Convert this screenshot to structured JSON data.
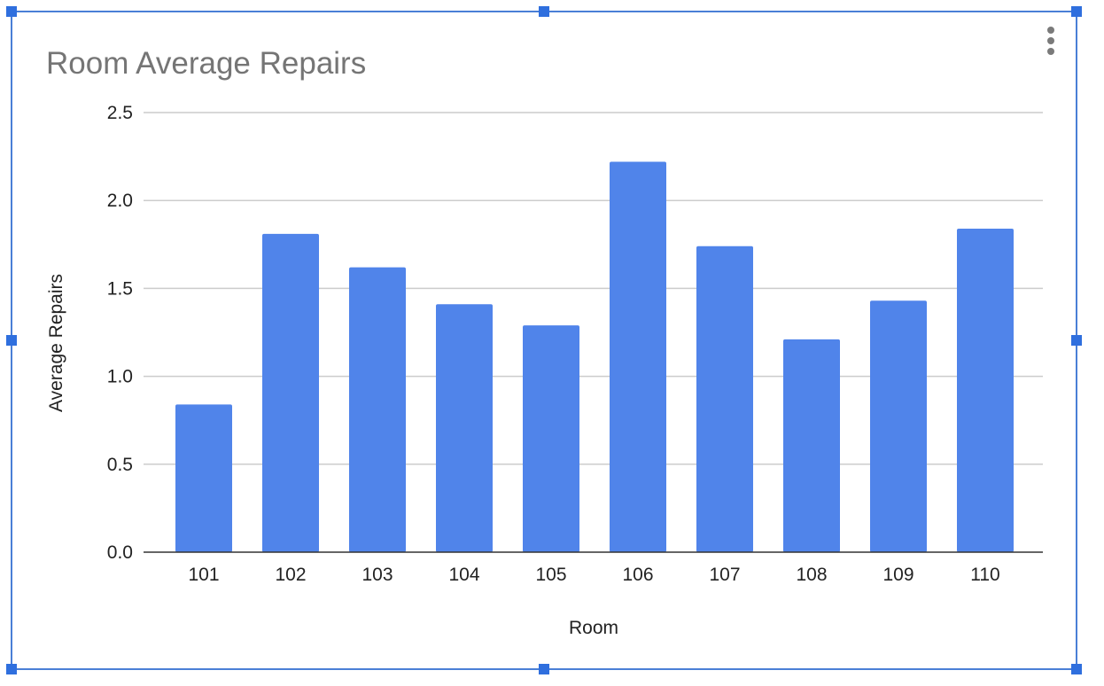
{
  "colors": {
    "bar": "#5084ea",
    "frame": "#4a7fd6",
    "handle": "#2f6fde",
    "gridline": "#cccccc",
    "baseline": "#333333",
    "title": "#757575",
    "text": "#222222"
  },
  "icons": {
    "menu": "more-vertical-icon"
  },
  "chart_data": {
    "type": "bar",
    "title": "Room Average Repairs",
    "xlabel": "Room",
    "ylabel": "Average Repairs",
    "categories": [
      "101",
      "102",
      "103",
      "104",
      "105",
      "106",
      "107",
      "108",
      "109",
      "110"
    ],
    "values": [
      0.84,
      1.81,
      1.62,
      1.41,
      1.29,
      2.22,
      1.74,
      1.21,
      1.43,
      1.84
    ],
    "ylim": [
      0,
      2.5
    ],
    "yticks": [
      "0.0",
      "0.5",
      "1.0",
      "1.5",
      "2.0",
      "2.5"
    ],
    "ytick_values": [
      0,
      0.5,
      1.0,
      1.5,
      2.0,
      2.5
    ],
    "grid": true,
    "legend": "none"
  }
}
